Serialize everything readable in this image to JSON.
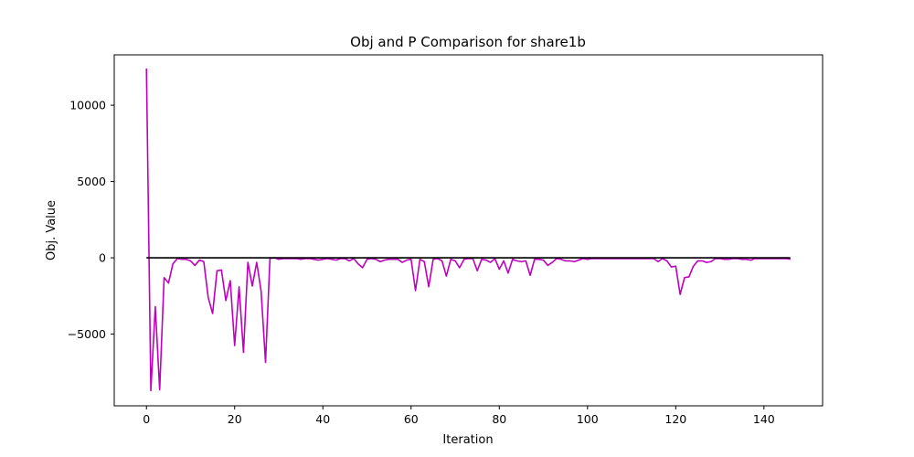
{
  "chart_data": {
    "type": "line",
    "title": "Obj and P Comparison for share1b",
    "xlabel": "Iteration",
    "ylabel": "Obj. Value",
    "xlim": [
      -7.3,
      153.3
    ],
    "ylim": [
      -9700,
      13300
    ],
    "xticks": [
      0,
      20,
      40,
      60,
      80,
      100,
      120,
      140
    ],
    "yticks": [
      -5000,
      0,
      5000,
      10000
    ],
    "ytick_labels": [
      "−5000",
      "0",
      "5000",
      "10000"
    ],
    "grid": false,
    "legend": "none",
    "series": [
      {
        "color": "#bf00bf",
        "x": [
          0,
          1,
          2,
          3,
          4,
          5,
          6,
          7,
          8,
          9,
          10,
          11,
          12,
          13,
          14,
          15,
          16,
          17,
          18,
          19,
          20,
          21,
          22,
          23,
          24,
          25,
          26,
          27,
          28,
          29,
          30,
          31,
          32,
          33,
          34,
          35,
          36,
          37,
          38,
          39,
          40,
          41,
          42,
          43,
          44,
          45,
          46,
          47,
          48,
          49,
          50,
          51,
          52,
          53,
          54,
          55,
          56,
          57,
          58,
          59,
          60,
          61,
          62,
          63,
          64,
          65,
          66,
          67,
          68,
          69,
          70,
          71,
          72,
          73,
          74,
          75,
          76,
          77,
          78,
          79,
          80,
          81,
          82,
          83,
          84,
          85,
          86,
          87,
          88,
          89,
          90,
          91,
          92,
          93,
          94,
          95,
          96,
          97,
          98,
          99,
          100,
          101,
          102,
          103,
          104,
          105,
          106,
          107,
          108,
          109,
          110,
          111,
          112,
          113,
          114,
          115,
          116,
          117,
          118,
          119,
          120,
          121,
          122,
          123,
          124,
          125,
          126,
          127,
          128,
          129,
          130,
          131,
          132,
          133,
          134,
          135,
          136,
          137,
          138,
          139,
          140,
          141,
          142,
          143,
          144,
          145,
          146
        ],
        "y": [
          12400,
          -8700,
          -3200,
          -8650,
          -1300,
          -1650,
          -400,
          -50,
          -100,
          -100,
          -200,
          -500,
          -150,
          -250,
          -2600,
          -3650,
          -850,
          -800,
          -2800,
          -1500,
          -5750,
          -1900,
          -6200,
          -300,
          -1850,
          -300,
          -2200,
          -6850,
          -50,
          0,
          -100,
          -50,
          -50,
          -50,
          -50,
          -100,
          -50,
          -50,
          -100,
          -150,
          -100,
          -50,
          -100,
          -150,
          -50,
          -50,
          -200,
          -50,
          -400,
          -650,
          -100,
          -50,
          -100,
          -250,
          -150,
          -100,
          -100,
          -100,
          -300,
          -150,
          -100,
          -2150,
          -100,
          -250,
          -1900,
          -100,
          -50,
          -200,
          -1200,
          -100,
          -200,
          -650,
          -100,
          -50,
          -50,
          -850,
          -100,
          -150,
          -300,
          -50,
          -750,
          -200,
          -1000,
          -100,
          -200,
          -250,
          -200,
          -1150,
          -100,
          -100,
          -150,
          -500,
          -300,
          -50,
          -100,
          -200,
          -200,
          -250,
          -150,
          -50,
          -100,
          -50,
          -50,
          -50,
          -50,
          -50,
          -50,
          -50,
          -50,
          -50,
          -50,
          -50,
          -50,
          -50,
          -50,
          -50,
          -250,
          -50,
          -200,
          -600,
          -550,
          -2400,
          -1300,
          -1250,
          -550,
          -200,
          -200,
          -300,
          -250,
          -50,
          -50,
          -100,
          -100,
          -50,
          -50,
          -100,
          -100,
          -150,
          -50,
          -50,
          -50,
          -50,
          -50,
          -50,
          -50,
          -50,
          -100
        ]
      },
      {
        "color": "#000000",
        "x": [
          0,
          146
        ],
        "y": [
          0,
          0
        ]
      }
    ]
  }
}
